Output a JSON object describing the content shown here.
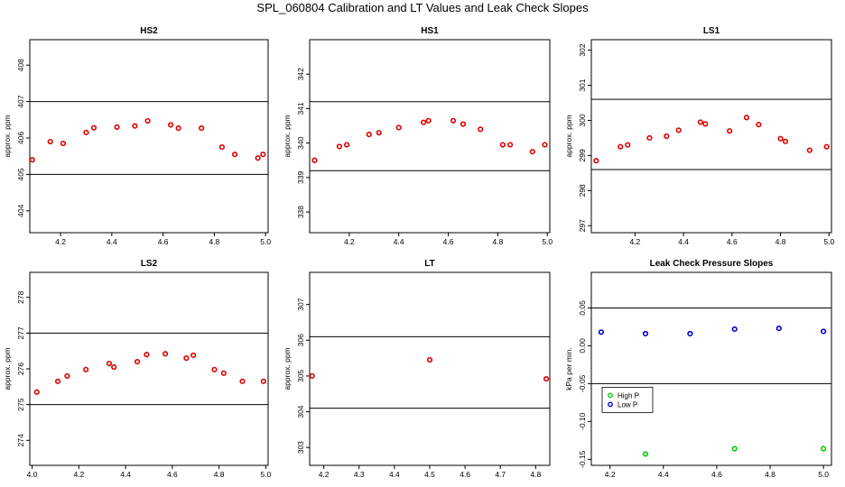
{
  "title": "SPL_060804  Calibration and LT Values and Leak Check Slopes",
  "chart_data": [
    {
      "type": "scatter",
      "title": "HS2",
      "ylabel": "approx. ppm",
      "xlabel": "",
      "xlim": [
        4.08,
        5.01
      ],
      "ylim": [
        403.4,
        408.7
      ],
      "xticks": [
        "4.2",
        "4.4",
        "4.6",
        "4.8",
        "5.0"
      ],
      "yticks": [
        "404",
        "405",
        "406",
        "407",
        "408"
      ],
      "hlines": [
        405,
        407
      ],
      "series": [
        {
          "color": "#dd0000",
          "x": [
            4.09,
            4.16,
            4.21,
            4.3,
            4.33,
            4.42,
            4.49,
            4.54,
            4.63,
            4.66,
            4.75,
            4.83,
            4.88,
            4.97,
            4.99
          ],
          "y": [
            405.4,
            405.9,
            405.85,
            406.15,
            406.28,
            406.3,
            406.33,
            406.47,
            406.36,
            406.27,
            406.27,
            405.75,
            405.55,
            405.45,
            405.55
          ]
        }
      ]
    },
    {
      "type": "scatter",
      "title": "HS1",
      "ylabel": "approx. ppm",
      "xlabel": "",
      "xlim": [
        4.04,
        5.01
      ],
      "ylim": [
        337.4,
        343.0
      ],
      "xticks": [
        "4.2",
        "4.4",
        "4.6",
        "4.8",
        "5.0"
      ],
      "yticks": [
        "338",
        "339",
        "340",
        "341",
        "342"
      ],
      "hlines": [
        339.2,
        341.2
      ],
      "series": [
        {
          "color": "#dd0000",
          "x": [
            4.06,
            4.16,
            4.19,
            4.28,
            4.32,
            4.4,
            4.5,
            4.52,
            4.62,
            4.66,
            4.73,
            4.82,
            4.85,
            4.94,
            4.99
          ],
          "y": [
            339.5,
            339.9,
            339.95,
            340.25,
            340.3,
            340.45,
            340.6,
            340.65,
            340.65,
            340.55,
            340.4,
            339.95,
            339.95,
            339.75,
            339.95
          ]
        }
      ]
    },
    {
      "type": "scatter",
      "title": "LS1",
      "ylabel": "approx. ppm",
      "xlabel": "",
      "xlim": [
        4.02,
        5.01
      ],
      "ylim": [
        296.8,
        302.3
      ],
      "xticks": [
        "4.2",
        "4.4",
        "4.6",
        "4.8",
        "5.0"
      ],
      "yticks": [
        "297",
        "298",
        "299",
        "300",
        "301",
        "302"
      ],
      "hlines": [
        298.6,
        300.6
      ],
      "series": [
        {
          "color": "#dd0000",
          "x": [
            4.04,
            4.14,
            4.17,
            4.26,
            4.33,
            4.38,
            4.47,
            4.49,
            4.59,
            4.66,
            4.71,
            4.8,
            4.82,
            4.92,
            4.99
          ],
          "y": [
            298.85,
            299.25,
            299.3,
            299.5,
            299.55,
            299.72,
            299.95,
            299.9,
            299.7,
            300.08,
            299.88,
            299.48,
            299.4,
            299.15,
            299.25
          ]
        }
      ]
    },
    {
      "type": "scatter",
      "title": "LS2",
      "ylabel": "approx. ppm",
      "xlabel": "",
      "xlim": [
        3.99,
        5.01
      ],
      "ylim": [
        273.3,
        278.7
      ],
      "xticks": [
        "4.0",
        "4.2",
        "4.4",
        "4.6",
        "4.8",
        "5.0"
      ],
      "yticks": [
        "274",
        "275",
        "276",
        "277",
        "278"
      ],
      "hlines": [
        275.0,
        277.0
      ],
      "series": [
        {
          "color": "#dd0000",
          "x": [
            4.02,
            4.11,
            4.15,
            4.23,
            4.33,
            4.35,
            4.45,
            4.49,
            4.57,
            4.66,
            4.69,
            4.78,
            4.82,
            4.9,
            4.99
          ],
          "y": [
            275.35,
            275.65,
            275.8,
            275.98,
            276.15,
            276.05,
            276.2,
            276.4,
            276.42,
            276.3,
            276.38,
            275.98,
            275.88,
            275.65,
            275.65
          ]
        }
      ]
    },
    {
      "type": "scatter",
      "title": "LT",
      "ylabel": "approx. ppm",
      "xlabel": "",
      "xlim": [
        4.16,
        4.84
      ],
      "ylim": [
        302.5,
        307.9
      ],
      "xticks": [
        "4.2",
        "4.3",
        "4.4",
        "4.5",
        "4.6",
        "4.7",
        "4.8"
      ],
      "yticks": [
        "303",
        "304",
        "305",
        "306",
        "307"
      ],
      "hlines": [
        304.1,
        306.1
      ],
      "series": [
        {
          "color": "#dd0000",
          "x": [
            4.167,
            4.5,
            4.83
          ],
          "y": [
            305.0,
            305.45,
            304.92
          ]
        }
      ]
    },
    {
      "type": "scatter",
      "title": "Leak Check Pressure Slopes",
      "ylabel": "kPa per min.",
      "xlabel": "",
      "xlim": [
        4.13,
        5.03
      ],
      "ylim": [
        -0.158,
        0.097
      ],
      "xticks": [
        "4.2",
        "4.4",
        "4.6",
        "4.8",
        "5.0"
      ],
      "yticks": [
        "-0.15",
        "-0.10",
        "-0.05",
        "0.00",
        "0.05"
      ],
      "hlines": [
        0.05,
        -0.05
      ],
      "legend": {
        "position": "left",
        "entries": [
          {
            "label": "High P",
            "color": "#00cc00"
          },
          {
            "label": "Low P",
            "color": "#0000cc"
          }
        ]
      },
      "series": [
        {
          "name": "High P",
          "color": "#00cc00",
          "x": [
            4.333,
            4.667,
            5.0
          ],
          "y": [
            -0.143,
            -0.136,
            -0.136
          ]
        },
        {
          "name": "Low P",
          "color": "#0000cc",
          "x": [
            4.167,
            4.333,
            4.5,
            4.667,
            4.833,
            5.0
          ],
          "y": [
            0.018,
            0.016,
            0.016,
            0.022,
            0.023,
            0.019
          ]
        }
      ]
    }
  ]
}
